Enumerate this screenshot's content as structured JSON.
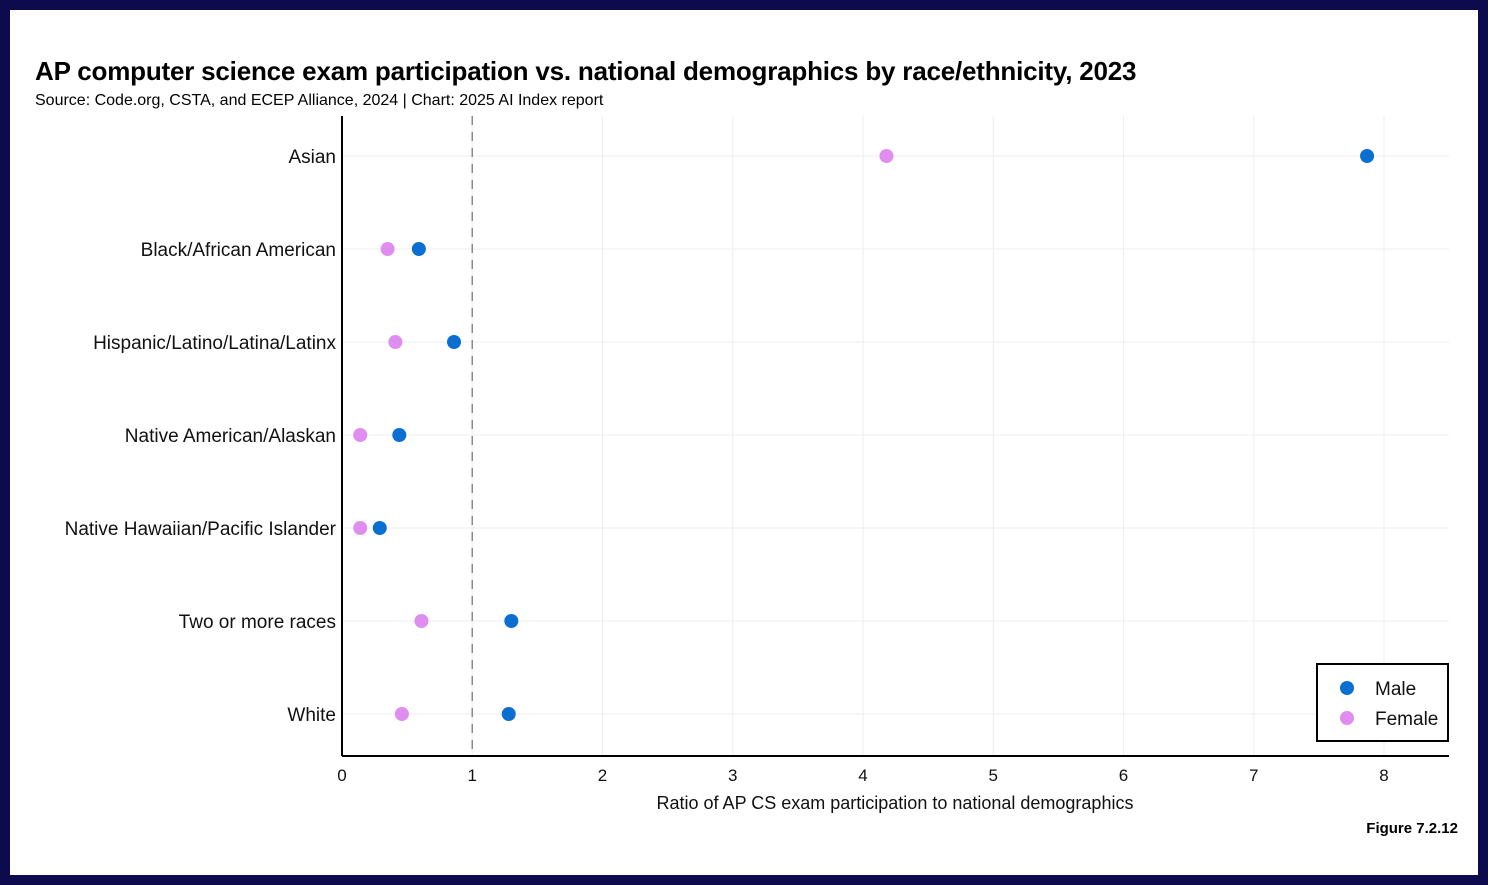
{
  "title": "AP computer science exam participation vs. national demographics by race/ethnicity, 2023",
  "subtitle": "Source: Code.org, CSTA, and ECEP Alliance, 2024 | Chart: 2025 AI Index report",
  "figure_label": "Figure 7.2.12",
  "colors": {
    "male": "#0b6fd1",
    "female": "#df8ef0",
    "grid": "#eeeeee",
    "axis": "#000000",
    "reference_line": "#8a8a8a"
  },
  "chart_data": {
    "type": "scatter",
    "title": "AP computer science exam participation vs. national demographics by race/ethnicity, 2023",
    "xlabel": "Ratio of AP CS exam participation to national demographics",
    "ylabel": "",
    "xlim": [
      0,
      8.5
    ],
    "xticks": [
      0,
      1,
      2,
      3,
      4,
      5,
      6,
      7,
      8
    ],
    "categories": [
      "Asian",
      "Black/African American",
      "Hispanic/Latino/Latina/Latinx",
      "Native American/Alaskan",
      "Native Hawaiian/Pacific Islander",
      "Two or more races",
      "White"
    ],
    "series": [
      {
        "name": "Male",
        "color": "#0b6fd1",
        "values": [
          7.87,
          0.59,
          0.86,
          0.44,
          0.29,
          1.3,
          1.28
        ]
      },
      {
        "name": "Female",
        "color": "#df8ef0",
        "values": [
          4.18,
          0.35,
          0.41,
          0.14,
          0.14,
          0.61,
          0.46
        ]
      }
    ],
    "reference_line": {
      "x": 1,
      "style": "dashed"
    },
    "grid": true,
    "legend_position": "bottom-right"
  }
}
